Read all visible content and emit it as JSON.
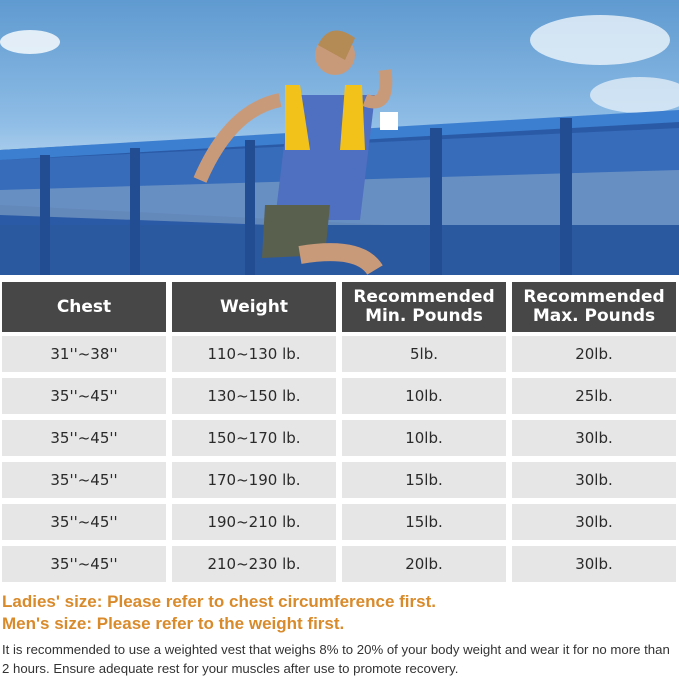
{
  "photo": {
    "subject": "woman running in weighted vest",
    "vest_color": "#f2c21b",
    "rail_color": "#2f63b3"
  },
  "table": {
    "headers": [
      "Chest",
      "Weight",
      "Recommended Min. Pounds",
      "Recommended Max. Pounds"
    ],
    "rows": [
      [
        "31''~38''",
        "110~130 lb.",
        "5lb.",
        "20lb."
      ],
      [
        "35''~45''",
        "130~150 lb.",
        "10lb.",
        "25lb."
      ],
      [
        "35''~45''",
        "150~170 lb.",
        "10lb.",
        "30lb."
      ],
      [
        "35''~45''",
        "170~190 lb.",
        "15lb.",
        "30lb."
      ],
      [
        "35''~45''",
        "190~210 lb.",
        "15lb.",
        "30lb."
      ],
      [
        "35''~45''",
        "210~230 lb.",
        "20lb.",
        "30lb."
      ]
    ],
    "header_color": "#474747",
    "cell_color": "#e6e6e6"
  },
  "notes": {
    "ladies": "Ladies' size: Please refer to chest circumference first.",
    "mens": "Men's size: Please refer to the weight first.",
    "accent_color": "#d98a2b",
    "description": "It is recommended to use a weighted vest that weighs 8% to 20% of your body weight and wear it for no more than 2 hours. Ensure adequate rest for your muscles after use to promote recovery."
  }
}
